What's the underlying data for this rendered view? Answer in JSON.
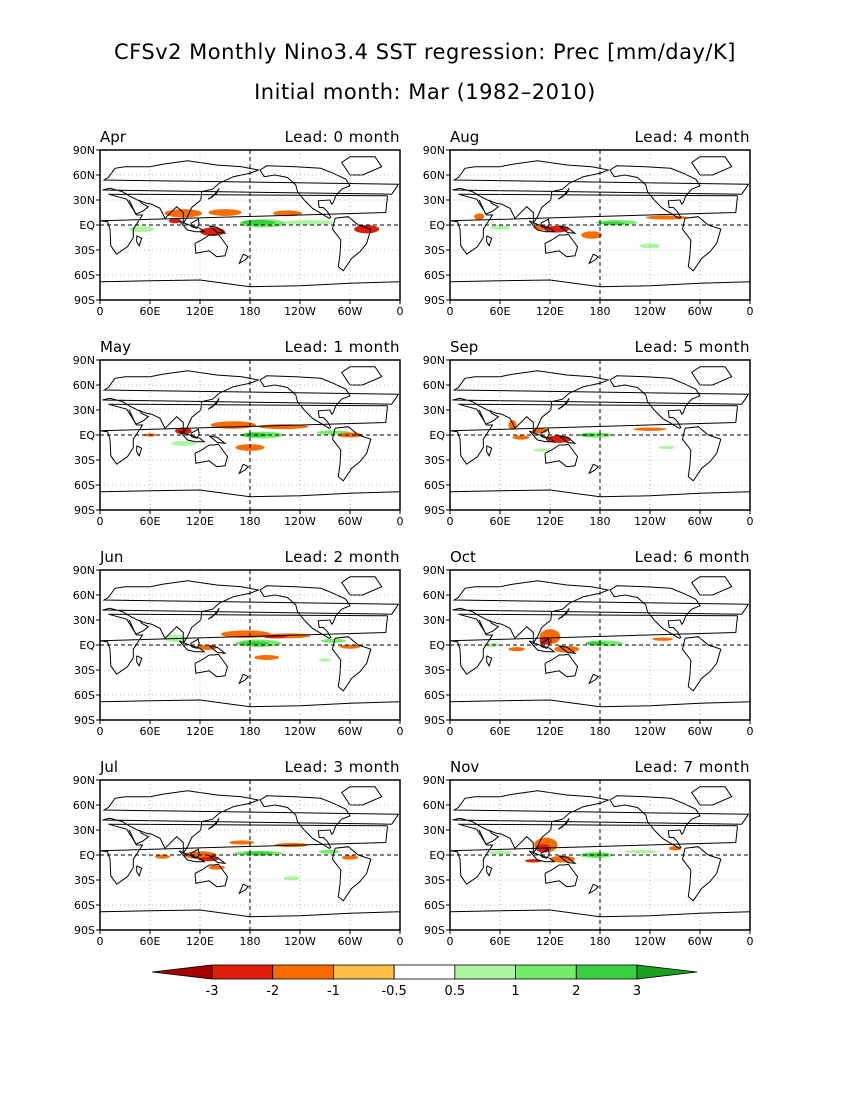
{
  "title": "CFSv2 Monthly Nino3.4 SST regression: Prec [mm/day/K]",
  "subtitle": "Initial month: Mar (1982–2010)",
  "chart_data": {
    "type": "heatmap",
    "grid": "dotted",
    "lat_ticks": [
      "90N",
      "60N",
      "30N",
      "EQ",
      "30S",
      "60S",
      "90S"
    ],
    "lon_ticks": [
      "0",
      "60E",
      "120E",
      "180",
      "120W",
      "60W",
      "0"
    ],
    "panels": [
      {
        "month": "Apr",
        "lead": "Lead: 0 month",
        "blobs": [
          {
            "lon": 100,
            "lat": 14,
            "w": 45,
            "h": 10,
            "v": -1
          },
          {
            "lon": 150,
            "lat": 15,
            "w": 40,
            "h": 8,
            "v": -1
          },
          {
            "lon": 135,
            "lat": -8,
            "w": 30,
            "h": 10,
            "v": -2
          },
          {
            "lon": 90,
            "lat": 5,
            "w": 15,
            "h": 6,
            "v": -2
          },
          {
            "lon": 195,
            "lat": 2,
            "w": 55,
            "h": 10,
            "v": 1
          },
          {
            "lon": 190,
            "lat": 3,
            "w": 40,
            "h": 6,
            "v": 2
          },
          {
            "lon": 250,
            "lat": 3,
            "w": 60,
            "h": 6,
            "v": 0.5
          },
          {
            "lon": 50,
            "lat": -5,
            "w": 30,
            "h": 7,
            "v": 0.5
          },
          {
            "lon": 320,
            "lat": -5,
            "w": 30,
            "h": 10,
            "v": -2
          },
          {
            "lon": 225,
            "lat": 14,
            "w": 35,
            "h": 7,
            "v": -1
          }
        ]
      },
      {
        "month": "Aug",
        "lead": "Lead: 4 month",
        "blobs": [
          {
            "lon": 128,
            "lat": -5,
            "w": 30,
            "h": 8,
            "v": -2
          },
          {
            "lon": 110,
            "lat": -3,
            "w": 20,
            "h": 6,
            "v": -1
          },
          {
            "lon": 170,
            "lat": -12,
            "w": 25,
            "h": 9,
            "v": -1
          },
          {
            "lon": 200,
            "lat": 3,
            "w": 50,
            "h": 6,
            "v": 1
          },
          {
            "lon": 195,
            "lat": 2,
            "w": 30,
            "h": 4,
            "v": 2
          },
          {
            "lon": 260,
            "lat": 9,
            "w": 50,
            "h": 5,
            "v": -1
          },
          {
            "lon": 35,
            "lat": 10,
            "w": 12,
            "h": 8,
            "v": -1
          },
          {
            "lon": 240,
            "lat": -25,
            "w": 25,
            "h": 6,
            "v": 0.5
          },
          {
            "lon": 60,
            "lat": -3,
            "w": 25,
            "h": 5,
            "v": 0.5
          }
        ]
      },
      {
        "month": "May",
        "lead": "Lead: 1 month",
        "blobs": [
          {
            "lon": 160,
            "lat": 12,
            "w": 55,
            "h": 9,
            "v": -1
          },
          {
            "lon": 220,
            "lat": 10,
            "w": 60,
            "h": 6,
            "v": -1
          },
          {
            "lon": 180,
            "lat": -15,
            "w": 35,
            "h": 8,
            "v": -1
          },
          {
            "lon": 100,
            "lat": 5,
            "w": 20,
            "h": 8,
            "v": -2
          },
          {
            "lon": 195,
            "lat": 0,
            "w": 50,
            "h": 8,
            "v": 1
          },
          {
            "lon": 185,
            "lat": 0,
            "w": 35,
            "h": 5,
            "v": 2
          },
          {
            "lon": 280,
            "lat": 3,
            "w": 40,
            "h": 5,
            "v": 1
          },
          {
            "lon": 300,
            "lat": 0,
            "w": 30,
            "h": 6,
            "v": -1
          },
          {
            "lon": 100,
            "lat": -10,
            "w": 30,
            "h": 6,
            "v": 0.5
          },
          {
            "lon": 60,
            "lat": 0,
            "w": 15,
            "h": 4,
            "v": -1
          }
        ]
      },
      {
        "month": "Sep",
        "lead": "Lead: 5 month",
        "blobs": [
          {
            "lon": 130,
            "lat": -5,
            "w": 30,
            "h": 9,
            "v": -2
          },
          {
            "lon": 108,
            "lat": 5,
            "w": 18,
            "h": 6,
            "v": -1
          },
          {
            "lon": 75,
            "lat": 12,
            "w": 10,
            "h": 12,
            "v": -1
          },
          {
            "lon": 85,
            "lat": -3,
            "w": 20,
            "h": 5,
            "v": -1
          },
          {
            "lon": 175,
            "lat": 0,
            "w": 40,
            "h": 6,
            "v": 1
          },
          {
            "lon": 165,
            "lat": 0,
            "w": 20,
            "h": 4,
            "v": 2
          },
          {
            "lon": 240,
            "lat": 7,
            "w": 40,
            "h": 4,
            "v": -1
          },
          {
            "lon": 110,
            "lat": -18,
            "w": 20,
            "h": 4,
            "v": 0.5
          },
          {
            "lon": 260,
            "lat": -15,
            "w": 20,
            "h": 4,
            "v": 0.5
          }
        ]
      },
      {
        "month": "Jun",
        "lead": "Lead: 2 month",
        "blobs": [
          {
            "lon": 175,
            "lat": 13,
            "w": 60,
            "h": 9,
            "v": -1
          },
          {
            "lon": 225,
            "lat": 11,
            "w": 55,
            "h": 6,
            "v": -1
          },
          {
            "lon": 210,
            "lat": 10,
            "w": 30,
            "h": 4,
            "v": -2
          },
          {
            "lon": 128,
            "lat": -3,
            "w": 25,
            "h": 6,
            "v": -1
          },
          {
            "lon": 190,
            "lat": 2,
            "w": 55,
            "h": 9,
            "v": 1
          },
          {
            "lon": 185,
            "lat": 2,
            "w": 35,
            "h": 5,
            "v": 2
          },
          {
            "lon": 90,
            "lat": 8,
            "w": 25,
            "h": 9,
            "v": 0.5
          },
          {
            "lon": 280,
            "lat": 5,
            "w": 30,
            "h": 5,
            "v": 1
          },
          {
            "lon": 300,
            "lat": -2,
            "w": 25,
            "h": 5,
            "v": -1
          },
          {
            "lon": 200,
            "lat": -15,
            "w": 30,
            "h": 6,
            "v": -1
          },
          {
            "lon": 270,
            "lat": -18,
            "w": 15,
            "h": 4,
            "v": 0.5
          }
        ]
      },
      {
        "month": "Oct",
        "lead": "Lead: 6 month",
        "blobs": [
          {
            "lon": 120,
            "lat": 10,
            "w": 25,
            "h": 18,
            "v": -1
          },
          {
            "lon": 115,
            "lat": 5,
            "w": 15,
            "h": 9,
            "v": -2
          },
          {
            "lon": 140,
            "lat": -5,
            "w": 30,
            "h": 8,
            "v": -1
          },
          {
            "lon": 80,
            "lat": -5,
            "w": 20,
            "h": 5,
            "v": -1
          },
          {
            "lon": 185,
            "lat": 2,
            "w": 45,
            "h": 7,
            "v": 1
          },
          {
            "lon": 175,
            "lat": 2,
            "w": 25,
            "h": 4,
            "v": 2
          },
          {
            "lon": 50,
            "lat": 0,
            "w": 20,
            "h": 5,
            "v": 0.5
          },
          {
            "lon": 255,
            "lat": 7,
            "w": 25,
            "h": 4,
            "v": -1
          }
        ]
      },
      {
        "month": "Jul",
        "lead": "Lead: 3 month",
        "blobs": [
          {
            "lon": 120,
            "lat": 0,
            "w": 40,
            "h": 9,
            "v": -1
          },
          {
            "lon": 130,
            "lat": -5,
            "w": 25,
            "h": 5,
            "v": -2
          },
          {
            "lon": 190,
            "lat": 2,
            "w": 60,
            "h": 6,
            "v": 1
          },
          {
            "lon": 190,
            "lat": 2,
            "w": 35,
            "h": 4,
            "v": 2
          },
          {
            "lon": 230,
            "lat": 12,
            "w": 40,
            "h": 5,
            "v": -1
          },
          {
            "lon": 170,
            "lat": 15,
            "w": 30,
            "h": 5,
            "v": -1
          },
          {
            "lon": 75,
            "lat": -2,
            "w": 18,
            "h": 5,
            "v": -1
          },
          {
            "lon": 275,
            "lat": 4,
            "w": 25,
            "h": 5,
            "v": 1
          },
          {
            "lon": 300,
            "lat": -3,
            "w": 20,
            "h": 5,
            "v": -1
          },
          {
            "lon": 230,
            "lat": -28,
            "w": 20,
            "h": 5,
            "v": 0.5
          },
          {
            "lon": 140,
            "lat": -15,
            "w": 20,
            "h": 5,
            "v": -1
          }
        ]
      },
      {
        "month": "Nov",
        "lead": "Lead: 7 month",
        "blobs": [
          {
            "lon": 115,
            "lat": 12,
            "w": 28,
            "h": 18,
            "v": -1
          },
          {
            "lon": 112,
            "lat": 8,
            "w": 18,
            "h": 10,
            "v": -2
          },
          {
            "lon": 135,
            "lat": -5,
            "w": 30,
            "h": 8,
            "v": -1
          },
          {
            "lon": 100,
            "lat": -7,
            "w": 20,
            "h": 4,
            "v": -2
          },
          {
            "lon": 175,
            "lat": 0,
            "w": 40,
            "h": 7,
            "v": 1
          },
          {
            "lon": 175,
            "lat": 0,
            "w": 25,
            "h": 4,
            "v": 2
          },
          {
            "lon": 60,
            "lat": 3,
            "w": 30,
            "h": 5,
            "v": 0.5
          },
          {
            "lon": 230,
            "lat": 4,
            "w": 40,
            "h": 4,
            "v": 0.5
          },
          {
            "lon": 270,
            "lat": 8,
            "w": 15,
            "h": 5,
            "v": -1
          }
        ]
      }
    ],
    "colorbar": {
      "levels": [
        "-3",
        "-2",
        "-1",
        "-0.5",
        "0.5",
        "1",
        "2",
        "3"
      ],
      "colors": [
        "#a50000",
        "#dc1e0a",
        "#fa6c00",
        "#ffbe46",
        "#ffffff",
        "#aef5a0",
        "#76ec6c",
        "#38d040",
        "#18a01e"
      ]
    },
    "palette": {
      "-3": "#a50000",
      "-2": "#dc1e0a",
      "-1": "#fa6c00",
      "-0.5": "#ffbe46",
      "0.5": "#aef5a0",
      "1": "#76ec6c",
      "2": "#38d040",
      "3": "#18a01e"
    }
  }
}
